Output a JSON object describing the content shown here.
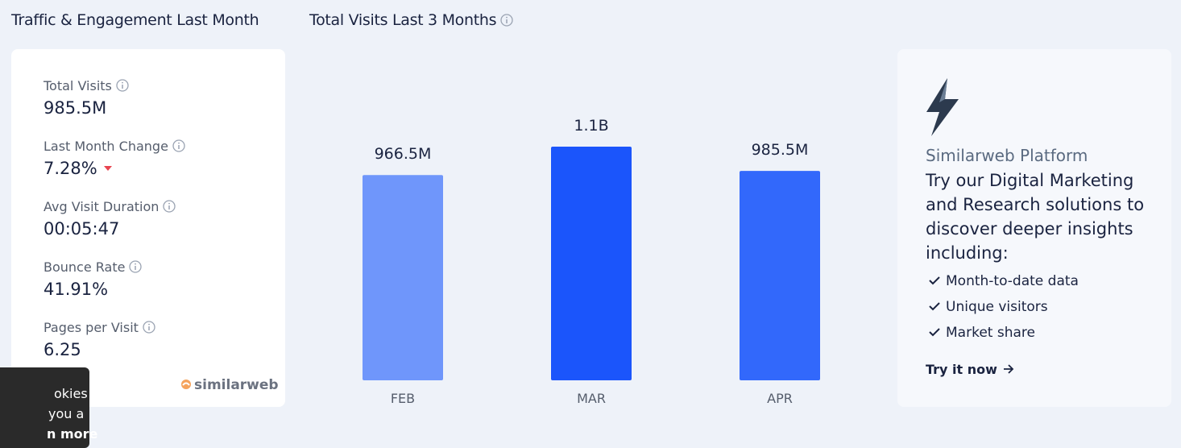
{
  "left_title": "Traffic & Engagement Last Month",
  "metrics": [
    {
      "label": "Total Visits",
      "value": "985.5M"
    },
    {
      "label": "Last Month Change",
      "value": "7.28%"
    },
    {
      "label": "Avg Visit Duration",
      "value": "00:05:47"
    },
    {
      "label": "Bounce Rate",
      "value": "41.91%"
    },
    {
      "label": "Pages per Visit",
      "value": "6.25"
    }
  ],
  "brand": "similarweb",
  "chart_data": {
    "type": "bar",
    "title": "Total Visits Last 3 Months",
    "categories": [
      "FEB",
      "MAR",
      "APR"
    ],
    "values": [
      966500000,
      1100000000,
      985500000
    ],
    "value_labels": [
      "966.5M",
      "1.1B",
      "985.5M"
    ],
    "colors": [
      "#6f96fb",
      "#1b55fb",
      "#3268fb"
    ]
  },
  "promo": {
    "title": "Similarweb Platform",
    "text": "Try our Digital Marketing and Research solutions to discover deeper insights including:",
    "features": [
      "Month-to-date data",
      "Unique visitors",
      "Market share"
    ],
    "cta": "Try it now"
  },
  "cookie_banner": {
    "lines": [
      "okies",
      "you a",
      "n more"
    ]
  }
}
